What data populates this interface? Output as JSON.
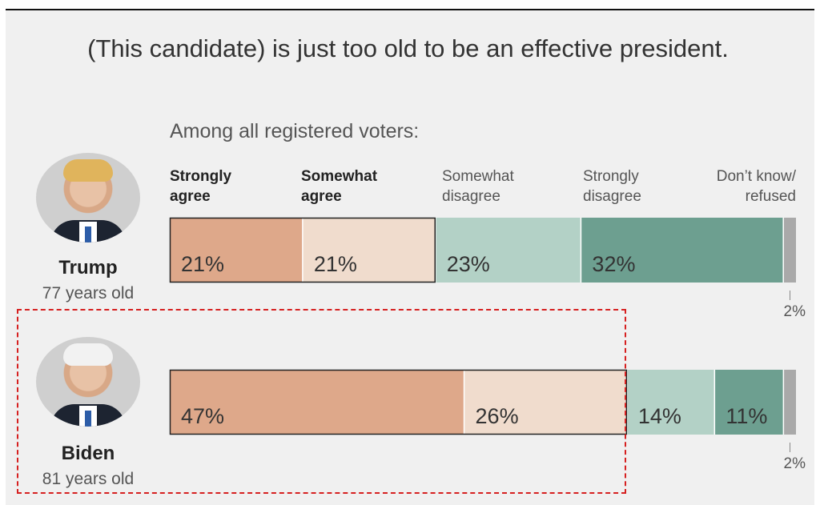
{
  "title": "(This candidate) is just too old to be an effective president.",
  "subtitle": "Among all registered voters:",
  "legend": [
    {
      "label": "Strongly\nagree",
      "style": "bold"
    },
    {
      "label": "Somewhat\nagree",
      "style": "bold"
    },
    {
      "label": "Somewhat\ndisagree",
      "style": "light"
    },
    {
      "label": "Strongly\ndisagree",
      "style": "light"
    },
    {
      "label": "Don’t know/\nrefused",
      "style": "light"
    }
  ],
  "colors": {
    "strongly_agree": "#dea88a",
    "somewhat_agree": "#f0dccd",
    "somewhat_disagree": "#b3d1c6",
    "strongly_disagree": "#6d9f90",
    "dont_know": "#a9a9a9"
  },
  "candidates": [
    {
      "name": "Trump",
      "age": "77 years old",
      "photo": "trump-portrait"
    },
    {
      "name": "Biden",
      "age": "81 years old",
      "photo": "biden-portrait"
    }
  ],
  "chart_data": {
    "type": "bar",
    "orientation": "horizontal-stacked-100",
    "title": "(This candidate) is just too old to be an effective president.",
    "subtitle": "Among all registered voters:",
    "categories": [
      "Trump",
      "Biden"
    ],
    "series": [
      {
        "name": "Strongly agree",
        "values": [
          21,
          47
        ],
        "labels": [
          "21%",
          "47%"
        ]
      },
      {
        "name": "Somewhat agree",
        "values": [
          21,
          26
        ],
        "labels": [
          "21%",
          "26%"
        ]
      },
      {
        "name": "Somewhat disagree",
        "values": [
          23,
          14
        ],
        "labels": [
          "23%",
          "14%"
        ]
      },
      {
        "name": "Strongly disagree",
        "values": [
          32,
          11
        ],
        "labels": [
          "32%",
          "11%"
        ]
      },
      {
        "name": "Don’t know/ refused",
        "values": [
          2,
          2
        ],
        "labels": [
          "2%",
          "2%"
        ]
      }
    ],
    "xlim": [
      0,
      100
    ],
    "grid": false,
    "legend": "top"
  }
}
